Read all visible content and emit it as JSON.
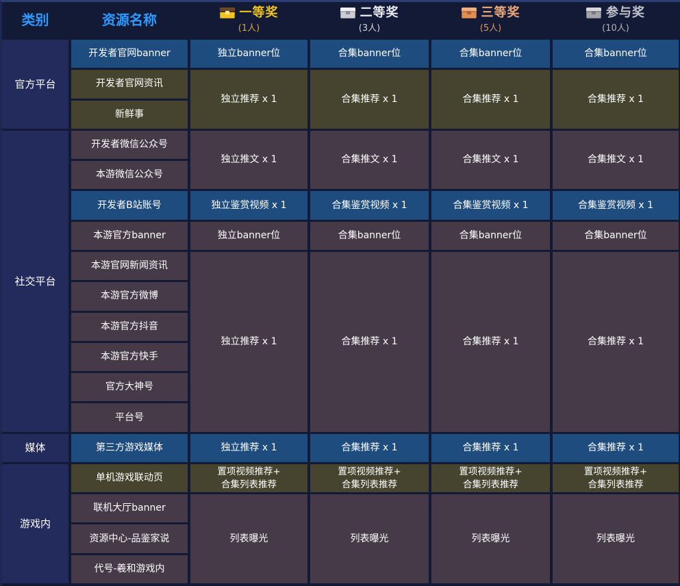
{
  "colors": {
    "background": "#121A36",
    "outer_border_top": "#2B3E73",
    "category_cell": "#232A5C",
    "highlight_cell_blue": "#1F4C7E",
    "olive_cell": "#46432F",
    "plum_cell": "#463A49",
    "header_text_blue": "#2E9AFF",
    "cell_text": "#FFFFFF",
    "gold": "#F2C41D",
    "silver": "#EDEDF4",
    "bronze": "#EDAA7A",
    "gray": "#C3C3CE"
  },
  "header": {
    "category_label": "类别",
    "resource_label": "资源名称",
    "prizes": [
      {
        "label": "一等奖",
        "sub": "(1人)",
        "icon": "gold-chest-icon"
      },
      {
        "label": "二等奖",
        "sub": "(3人)",
        "icon": "silver-chest-icon"
      },
      {
        "label": "三等奖",
        "sub": "(5人)",
        "icon": "bronze-chest-icon"
      },
      {
        "label": "参与奖",
        "sub": "(10人)",
        "icon": "gray-chest-icon"
      }
    ]
  },
  "categories": [
    {
      "label": "官方平台"
    },
    {
      "label": "社交平台"
    },
    {
      "label": "媒体"
    },
    {
      "label": "游戏内"
    }
  ],
  "resources": [
    "开发者官网banner",
    "开发者官网资讯",
    "新鲜事",
    "开发者微信公众号",
    "本游微信公众号",
    "开发者B站账号",
    "本游官方banner",
    "本游官网新闻资讯",
    "本游官方微博",
    "本游官方抖音",
    "本游官方快手",
    "官方大神号",
    "平台号",
    "第三方游戏媒体",
    "单机游戏联动页",
    "联机大厅banner",
    "资源中心-品鉴家说",
    "代号-羲和游戏内"
  ],
  "rewards": {
    "official_banner": [
      "独立banner位",
      "合集banner位",
      "合集banner位",
      "合集banner位"
    ],
    "official_recommend": [
      "独立推荐 x 1",
      "合集推荐 x 1",
      "合集推荐 x 1",
      "合集推荐 x 1"
    ],
    "wechat_tweet": [
      "独立推文 x 1",
      "合集推文 x 1",
      "合集推文 x 1",
      "合集推文 x 1"
    ],
    "bilibili_video": [
      "独立鉴赏视频 x 1",
      "合集鉴赏视频 x 1",
      "合集鉴赏视频 x 1",
      "合集鉴赏视频 x 1"
    ],
    "game_banner": [
      "独立banner位",
      "合集banner位",
      "合集banner位",
      "合集banner位"
    ],
    "social_recommend": [
      "独立推荐 x 1",
      "合集推荐 x 1",
      "合集推荐 x 1",
      "合集推荐 x 1"
    ],
    "media_recommend": [
      "独立推荐 x 1",
      "合集推荐 x 1",
      "合集推荐 x 1",
      "合集推荐 x 1"
    ],
    "ingame_pinned": [
      "置项视频推荐+\n合集列表推荐",
      "置项视频推荐+\n合集列表推荐",
      "置项视频推荐+\n合集列表推荐",
      "置项视频推荐+\n合集列表推荐"
    ],
    "ingame_list": [
      "列表曝光",
      "列表曝光",
      "列表曝光",
      "列表曝光"
    ]
  }
}
